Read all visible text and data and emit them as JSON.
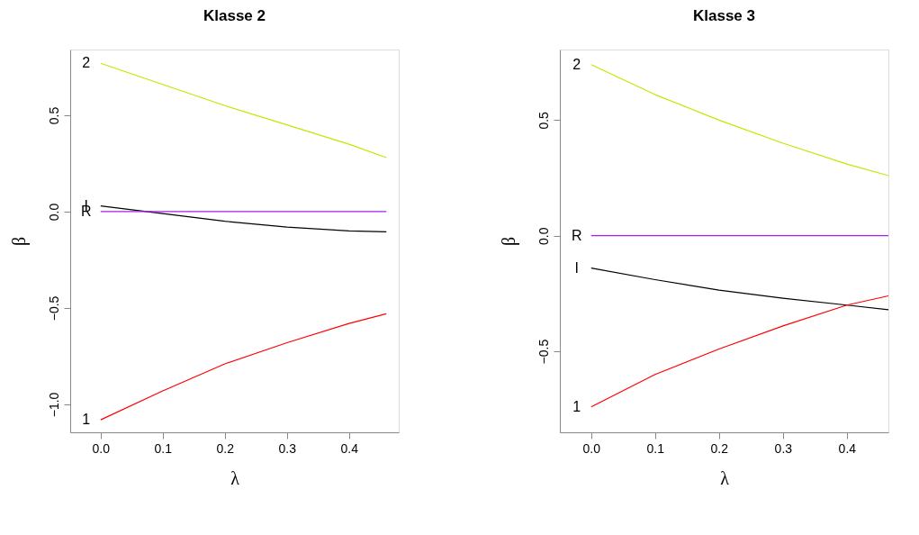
{
  "chart_data": [
    {
      "type": "line",
      "title": "Klasse 2",
      "xlabel": "λ",
      "ylabel": "β",
      "xlim": [
        -0.049,
        0.48
      ],
      "ylim": [
        -1.145,
        0.841
      ],
      "xticks": [
        {
          "value": 0,
          "label": "0.0"
        },
        0.1,
        0.2,
        0.3,
        0.4
      ],
      "yticks": [
        {
          "value": -1,
          "label": "−1.0"
        },
        {
          "value": -0.5,
          "label": "−0.5"
        },
        {
          "value": 0,
          "label": "0.0"
        },
        0.5
      ],
      "grid": false,
      "legend": false,
      "line_style": "solid",
      "marker": "none",
      "series": [
        {
          "name": "2",
          "color": "#c5e600",
          "x": [
            0,
            0.1,
            0.2,
            0.3,
            0.4,
            0.46
          ],
          "values": [
            0.77,
            0.66,
            0.55,
            0.45,
            0.35,
            0.28
          ]
        },
        {
          "name": "I",
          "color": "#000000",
          "x": [
            0,
            0.1,
            0.2,
            0.3,
            0.4,
            0.46
          ],
          "values": [
            0.03,
            -0.01,
            -0.05,
            -0.08,
            -0.1,
            -0.105
          ]
        },
        {
          "name": "R",
          "color": "#a020f0",
          "x": [
            0,
            0.46
          ],
          "values": [
            0,
            0
          ]
        },
        {
          "name": "1",
          "color": "#ff0000",
          "x": [
            0,
            0.1,
            0.2,
            0.3,
            0.4,
            0.46
          ],
          "values": [
            -1.08,
            -0.93,
            -0.79,
            -0.68,
            -0.58,
            -0.53
          ]
        }
      ]
    },
    {
      "type": "line",
      "title": "Klasse 3",
      "xlabel": "λ",
      "ylabel": "β",
      "xlim": [
        -0.049,
        0.465
      ],
      "ylim": [
        -0.85,
        0.805
      ],
      "xticks": [
        {
          "value": 0,
          "label": "0.0"
        },
        0.1,
        0.2,
        0.3,
        0.4
      ],
      "yticks": [
        {
          "value": -0.5,
          "label": "−0.5"
        },
        {
          "value": 0,
          "label": "0.0"
        },
        0.5
      ],
      "grid": false,
      "legend": false,
      "line_style": "solid",
      "marker": "none",
      "series": [
        {
          "name": "2",
          "color": "#c5e600",
          "x": [
            0,
            0.1,
            0.2,
            0.3,
            0.4,
            0.465
          ],
          "values": [
            0.74,
            0.61,
            0.5,
            0.4,
            0.31,
            0.26
          ]
        },
        {
          "name": "R",
          "color": "#a020f0",
          "x": [
            0,
            0.465
          ],
          "values": [
            0,
            0
          ]
        },
        {
          "name": "I",
          "color": "#000000",
          "x": [
            0,
            0.1,
            0.2,
            0.3,
            0.4,
            0.465
          ],
          "values": [
            -0.14,
            -0.19,
            -0.235,
            -0.27,
            -0.3,
            -0.32
          ]
        },
        {
          "name": "1",
          "color": "#ff0000",
          "x": [
            0,
            0.1,
            0.2,
            0.3,
            0.4,
            0.465
          ],
          "values": [
            -0.74,
            -0.6,
            -0.49,
            -0.39,
            -0.3,
            -0.26
          ]
        }
      ]
    }
  ]
}
